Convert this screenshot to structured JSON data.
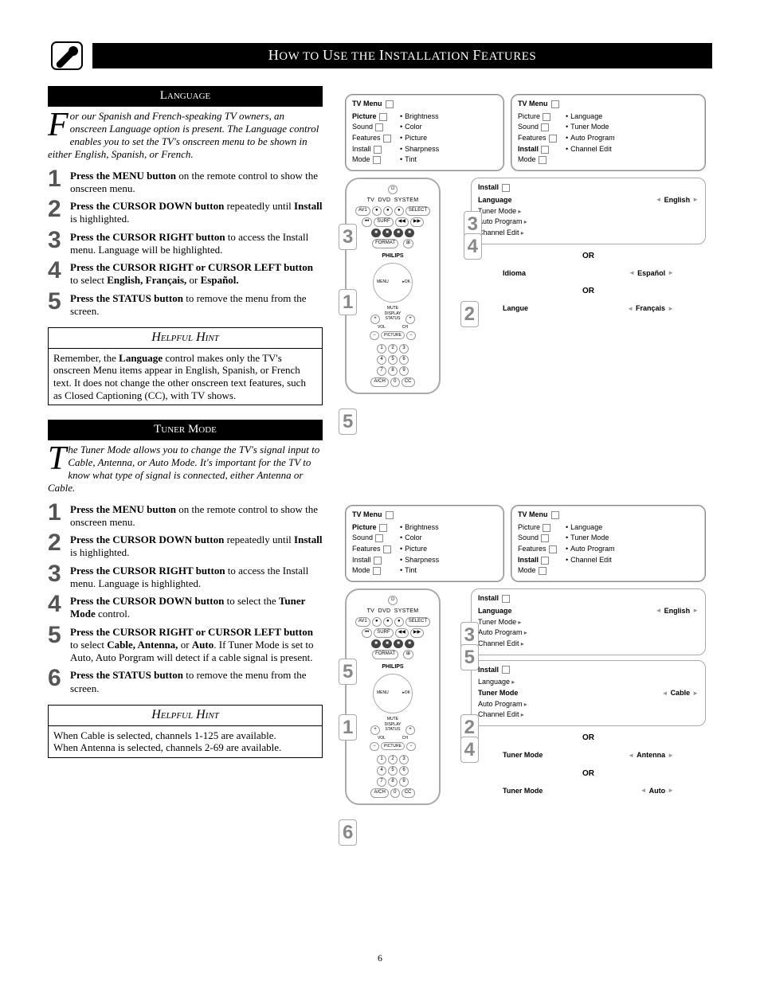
{
  "header": {
    "title_html": "H<span class='big'>OW</span> <span class='big'>TO</span> U<span class='big'>SE THE</span> I<span class='big'>NSTALLATION</span> F<span class='big'>EATURES</span>",
    "title_plain": "How to Use the Installation Features"
  },
  "page_number": "6",
  "section1": {
    "heading": "Language",
    "intro_dropcap": "F",
    "intro_rest": "or our Spanish and French-speaking TV owners, an onscreen Language option is present. The Language control enables you to set the TV's onscreen menu to be shown in either English, Spanish, or French.",
    "steps": [
      {
        "n": "1",
        "html": "<b>Press the MENU button</b> on the remote control to show the onscreen menu."
      },
      {
        "n": "2",
        "html": "<b>Press the CURSOR DOWN button</b> repeatedly until <b>Install</b> is highlighted."
      },
      {
        "n": "3",
        "html": "<b>Press the CURSOR RIGHT button</b> to access the Install menu.  Language will be highlighted."
      },
      {
        "n": "4",
        "html": "<b>Press the CURSOR RIGHT or CURSOR LEFT button</b> to select <b>English, Français,</b> or <b>Español.</b>"
      },
      {
        "n": "5",
        "html": "<b>Press the STATUS button</b> to remove the menu from the screen."
      }
    ],
    "hint_head": "Helpful Hint",
    "hint_body": "Remember, the <b>Language</b> control makes only the TV's onscreen Menu items appear in English, Spanish, or French text.  It does not change the other onscreen text features, such as Closed Captioning (CC), with TV shows."
  },
  "section2": {
    "heading": "Tuner Mode",
    "intro_dropcap": "T",
    "intro_rest": "he Tuner Mode allows you to change the TV's signal input to Cable, Antenna, or Auto Mode. It's important for the TV to know what type of signal is connected, either Antenna or Cable.",
    "steps": [
      {
        "n": "1",
        "html": "<b>Press the MENU button</b> on the remote control to show the onscreen menu."
      },
      {
        "n": "2",
        "html": "<b>Press the CURSOR DOWN button</b> repeatedly until <b>Install</b> is highlighted."
      },
      {
        "n": "3",
        "html": "<b>Press the CURSOR RIGHT button</b> to access the Install menu. Language is highlighted."
      },
      {
        "n": "4",
        "html": "<b>Press the CURSOR DOWN button</b> to select the <b>Tuner Mode</b> control."
      },
      {
        "n": "5",
        "html": "<b>Press the CURSOR RIGHT or CURSOR LEFT button</b> to select <b>Cable, Antenna,</b> or <b>Auto</b>. If Tuner Mode is set to Auto, Auto Porgram will detect if a cable signal is present."
      },
      {
        "n": "6",
        "html": "<b>Press the STATUS button</b> to remove the menu from the screen."
      }
    ],
    "hint_head": "Helpful Hint",
    "hint_body": "When Cable is selected, channels 1-125 are available.<br>When Antenna is selected, channels 2-69 are available."
  },
  "menus": {
    "tv_menu": "TV Menu",
    "left_items": [
      "Picture",
      "Sound",
      "Features",
      "Install",
      "Mode"
    ],
    "pic_sub": [
      "Brightness",
      "Color",
      "Picture",
      "Sharpness",
      "Tint"
    ],
    "install_sub": [
      "Language",
      "Tuner Mode",
      "Auto Program",
      "Channel Edit"
    ],
    "install_label": "Install",
    "language": "Language",
    "tuner_mode": "Tuner Mode",
    "auto_program": "Auto Program",
    "channel_edit": "Channel Edit",
    "english": "English",
    "idioma": "Idioma",
    "espanol": "Español",
    "langue": "Langue",
    "francais": "Français",
    "cable": "Cable",
    "antenna": "Antenna",
    "auto": "Auto",
    "or": "OR",
    "philips": "PHILIPS"
  },
  "callouts_d1": [
    "1",
    "2",
    "3",
    "3",
    "4",
    "5"
  ],
  "callouts_d2": [
    "1",
    "2",
    "3",
    "4",
    "5",
    "5",
    "6"
  ],
  "colors": {
    "step_num": "#555555",
    "callout": "#888888",
    "border": "#999999"
  }
}
